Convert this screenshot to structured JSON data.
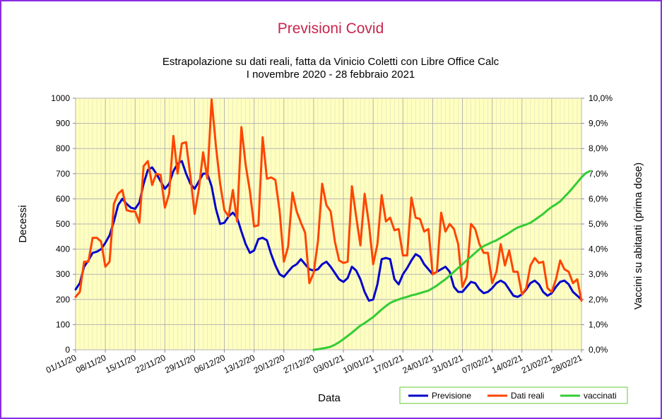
{
  "chart_data": {
    "type": "line",
    "title": "Previsioni Covid",
    "subtitle_line1": "Estrapolazione su dati reali, fatta da Vinicio Coletti con Libre Office Calc",
    "subtitle_line2": "I novembre 2020 - 28 febbraio 2021",
    "xlabel": "Data",
    "ylabel": "Decessi",
    "y2label": "Vaccini su abitanti (prima dose)",
    "ylim": [
      0,
      1000
    ],
    "y2lim": [
      0,
      10
    ],
    "yticks": [
      "0",
      "100",
      "200",
      "300",
      "400",
      "500",
      "600",
      "700",
      "800",
      "900",
      "1000"
    ],
    "y2ticks": [
      "0,0%",
      "1,0%",
      "2,0%",
      "3,0%",
      "4,0%",
      "5,0%",
      "6,0%",
      "7,0%",
      "8,0%",
      "9,0%",
      "10,0%"
    ],
    "xticks": [
      "01/11/20",
      "08/11/20",
      "15/11/20",
      "22/11/20",
      "29/11/20",
      "06/12/20",
      "13/12/20",
      "20/12/20",
      "27/12/20",
      "03/01/21",
      "10/01/21",
      "17/01/21",
      "24/01/21",
      "31/01/21",
      "07/02/21",
      "14/02/21",
      "21/02/21",
      "28/02/21"
    ],
    "grid": true,
    "legend_position": "bottom-right",
    "colors": {
      "plot_bg": "#ffffc0",
      "previsione": "#0000cc",
      "dati_reali": "#ff4500",
      "vaccinati": "#33cc33",
      "title": "#c7254e",
      "frame": "#8a2be2",
      "legend_border": "#66cc33"
    },
    "series": [
      {
        "name": "Previsione",
        "values": [
          240,
          265,
          330,
          355,
          385,
          390,
          400,
          425,
          455,
          510,
          575,
          600,
          580,
          565,
          560,
          585,
          660,
          715,
          725,
          700,
          670,
          640,
          660,
          710,
          740,
          750,
          700,
          660,
          640,
          670,
          700,
          700,
          650,
          560,
          500,
          505,
          530,
          545,
          525,
          470,
          420,
          385,
          395,
          440,
          445,
          435,
          380,
          335,
          300,
          290,
          310,
          330,
          340,
          360,
          340,
          320,
          315,
          320,
          340,
          350,
          330,
          305,
          280,
          270,
          285,
          330,
          315,
          280,
          230,
          195,
          200,
          260,
          360,
          365,
          360,
          280,
          260,
          300,
          325,
          355,
          380,
          370,
          340,
          320,
          300,
          310,
          320,
          330,
          310,
          250,
          230,
          230,
          250,
          270,
          265,
          240,
          225,
          230,
          245,
          265,
          275,
          265,
          240,
          215,
          210,
          220,
          240,
          265,
          275,
          260,
          230,
          215,
          225,
          250,
          270,
          275,
          260,
          230,
          215,
          200
        ]
      },
      {
        "name": "Dati reali",
        "values": [
          210,
          230,
          350,
          350,
          445,
          445,
          430,
          330,
          350,
          580,
          620,
          635,
          555,
          550,
          550,
          505,
          730,
          750,
          655,
          700,
          695,
          565,
          620,
          850,
          700,
          820,
          825,
          690,
          540,
          640,
          785,
          680,
          995,
          810,
          660,
          555,
          530,
          635,
          510,
          885,
          735,
          630,
          490,
          495,
          845,
          680,
          685,
          675,
          550,
          350,
          410,
          625,
          550,
          505,
          465,
          265,
          305,
          430,
          660,
          575,
          550,
          430,
          355,
          345,
          350,
          650,
          530,
          415,
          620,
          500,
          340,
          420,
          615,
          510,
          525,
          475,
          480,
          375,
          375,
          605,
          525,
          520,
          470,
          480,
          300,
          310,
          545,
          470,
          500,
          480,
          420,
          250,
          290,
          500,
          480,
          420,
          385,
          385,
          265,
          310,
          420,
          335,
          395,
          310,
          310,
          220,
          245,
          335,
          365,
          345,
          350,
          245,
          230,
          280,
          355,
          320,
          310,
          265,
          280,
          195
        ]
      },
      {
        "name": "vaccinati",
        "values": [
          null,
          null,
          null,
          null,
          null,
          null,
          null,
          null,
          null,
          null,
          null,
          null,
          null,
          null,
          null,
          null,
          null,
          null,
          null,
          null,
          null,
          null,
          null,
          null,
          null,
          null,
          null,
          null,
          null,
          null,
          null,
          null,
          null,
          null,
          null,
          null,
          null,
          null,
          null,
          null,
          null,
          null,
          null,
          null,
          null,
          null,
          null,
          null,
          null,
          null,
          null,
          null,
          null,
          null,
          null,
          null,
          0.0,
          0.02,
          0.05,
          0.08,
          0.12,
          0.2,
          0.3,
          0.42,
          0.55,
          0.68,
          0.82,
          0.96,
          1.06,
          1.18,
          1.3,
          1.45,
          1.6,
          1.74,
          1.86,
          1.94,
          2.0,
          2.06,
          2.1,
          2.16,
          2.2,
          2.25,
          2.3,
          2.35,
          2.45,
          2.55,
          2.68,
          2.8,
          2.95,
          3.1,
          3.25,
          3.4,
          3.55,
          3.7,
          3.85,
          4.0,
          4.12,
          4.2,
          4.28,
          4.35,
          4.45,
          4.55,
          4.65,
          4.76,
          4.86,
          4.92,
          4.98,
          5.05,
          5.16,
          5.28,
          5.4,
          5.55,
          5.68,
          5.78,
          5.9,
          6.08,
          6.25,
          6.45,
          6.65,
          6.85,
          7.02,
          7.1
        ]
      }
    ]
  }
}
